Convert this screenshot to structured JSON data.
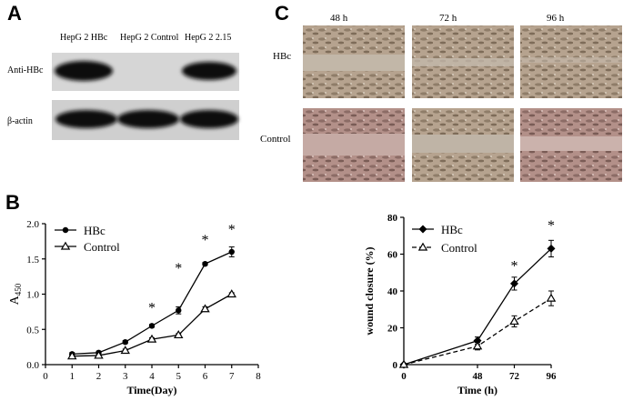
{
  "panels": {
    "a": {
      "letter": "A",
      "lanes": [
        "HepG 2 HBc",
        "HepG 2 Control",
        "HepG 2 2.15"
      ],
      "rows": [
        "Anti-HBc",
        "β-actin"
      ]
    },
    "b": {
      "letter": "B"
    },
    "c": {
      "letter": "C",
      "timepoints": [
        "48 h",
        "72 h",
        "96 h"
      ],
      "rows": [
        "HBc",
        "Control"
      ]
    }
  },
  "chart_data": [
    {
      "type": "line",
      "x": [
        1,
        2,
        3,
        4,
        5,
        6,
        7
      ],
      "series": [
        {
          "name": "HBc",
          "values": [
            0.15,
            0.17,
            0.32,
            0.55,
            0.77,
            1.43,
            1.6
          ],
          "errors": [
            0.02,
            0.02,
            0.02,
            0.02,
            0.05,
            0.02,
            0.07
          ],
          "marker": "circle",
          "dash": "solid"
        },
        {
          "name": "Control",
          "values": [
            0.12,
            0.13,
            0.2,
            0.36,
            0.42,
            0.79,
            1.0
          ],
          "errors": [
            0.02,
            0.02,
            0.02,
            0.02,
            0.02,
            0.03,
            0.02
          ],
          "marker": "triangle",
          "dash": "solid"
        }
      ],
      "xlabel": "Time(Day)",
      "ylabel": "A450",
      "ylabel_main": "A",
      "ylabel_sub": "450",
      "xlim": [
        0,
        8
      ],
      "ylim": [
        0,
        2.0
      ],
      "xticks": [
        "0",
        "1",
        "2",
        "3",
        "4",
        "5",
        "6",
        "7",
        "8"
      ],
      "yticks": [
        "0.0",
        "0.5",
        "1.0",
        "1.5",
        "2.0"
      ],
      "significance": [
        {
          "x": 4,
          "y": 0.82,
          "label": "*"
        },
        {
          "x": 5,
          "y": 1.38,
          "label": "*"
        },
        {
          "x": 6,
          "y": 1.78,
          "label": "*"
        },
        {
          "x": 7,
          "y": 1.93,
          "label": "*"
        }
      ],
      "legend": "top-left",
      "grid": false
    },
    {
      "type": "line",
      "x": [
        0,
        48,
        72,
        96
      ],
      "series": [
        {
          "name": "HBc",
          "values": [
            0,
            13,
            44,
            63
          ],
          "errors": [
            0,
            2,
            3.5,
            4.5
          ],
          "marker": "diamond",
          "dash": "solid"
        },
        {
          "name": "Control",
          "values": [
            0,
            10,
            23.5,
            36
          ],
          "errors": [
            0,
            2,
            3,
            4
          ],
          "marker": "triangle",
          "dash": "dashed"
        }
      ],
      "xlabel": "Time (h)",
      "ylabel": "wound closure (%)",
      "xlim": [
        0,
        96
      ],
      "ylim": [
        0,
        80
      ],
      "xticks": [
        "0",
        "48",
        "72",
        "96"
      ],
      "yticks": [
        "0",
        "20",
        "40",
        "60",
        "80"
      ],
      "significance": [
        {
          "x": 72,
          "y": 54,
          "label": "*"
        },
        {
          "x": 96,
          "y": 76,
          "label": "*"
        }
      ],
      "legend": "top-left",
      "grid": false
    }
  ]
}
